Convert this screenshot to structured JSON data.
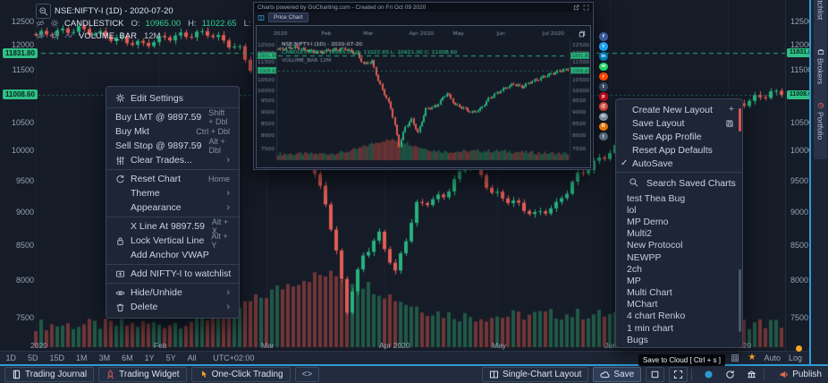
{
  "chart": {
    "legend": {
      "symbol": "NSE:NIFTY-I (1D) - 2020-07-20",
      "study": "CANDLESTICK",
      "ohlc": [
        {
          "k": "O:",
          "v": "10965.00"
        },
        {
          "k": "H:",
          "v": "11022.65"
        },
        {
          "k": "L:",
          "v": "10921.00"
        },
        {
          "k": "C:",
          "v": "11008.60"
        }
      ],
      "volume_study": "VOLUME_BAR",
      "volume_value": "12M"
    },
    "badges": {
      "upper": "11831.80",
      "lower": "11008.60"
    },
    "timezone": "UTC+02:00",
    "scale_labels": {
      "auto": "Auto",
      "log": "Log"
    }
  },
  "chart_data": {
    "type": "candlestick",
    "symbol": "NSE:NIFTY-I",
    "interval": "1D",
    "title": "NSE:NIFTY-I (1D) - 2020-07-20",
    "last": {
      "open": 10965.0,
      "high": 11022.65,
      "low": 10921.0,
      "close": 11008.6
    },
    "levels": {
      "prev_close_dashed": 11831.8,
      "last_price": 11008.6
    },
    "y_axis": {
      "scale": "log",
      "range": [
        7400,
        12600
      ],
      "ticks": [
        12500,
        12000,
        11500,
        10500,
        10000,
        9500,
        9000,
        8500,
        8000,
        7500
      ]
    },
    "x_axis": {
      "months": [
        {
          "label": "2020",
          "i": 0
        },
        {
          "label": "Feb",
          "i": 23
        },
        {
          "label": "Mar",
          "i": 43
        },
        {
          "label": "Apr 2020",
          "i": 65
        },
        {
          "label": "May",
          "i": 86
        },
        {
          "label": "Jun",
          "i": 107
        },
        {
          "label": "Jul 2020",
          "i": 129
        }
      ]
    },
    "n_candles": 140,
    "close_anchors": [
      [
        0,
        12200
      ],
      [
        8,
        12330
      ],
      [
        14,
        12150
      ],
      [
        20,
        12000
      ],
      [
        24,
        12150
      ],
      [
        32,
        12250
      ],
      [
        38,
        11900
      ],
      [
        41,
        11350
      ],
      [
        45,
        11500
      ],
      [
        48,
        10450
      ],
      [
        54,
        9150
      ],
      [
        58,
        7610
      ],
      [
        61,
        8350
      ],
      [
        64,
        8650
      ],
      [
        67,
        8100
      ],
      [
        71,
        9100
      ],
      [
        76,
        9250
      ],
      [
        81,
        9850
      ],
      [
        85,
        9300
      ],
      [
        89,
        9150
      ],
      [
        93,
        8950
      ],
      [
        97,
        9100
      ],
      [
        101,
        9580
      ],
      [
        105,
        9850
      ],
      [
        109,
        10100
      ],
      [
        113,
        10300
      ],
      [
        117,
        10150
      ],
      [
        121,
        10400
      ],
      [
        125,
        10550
      ],
      [
        129,
        10750
      ],
      [
        133,
        10900
      ],
      [
        137,
        11050
      ],
      [
        139,
        11008.6
      ]
    ]
  },
  "context_menu": {
    "items": [
      {
        "icon": "gear",
        "label": "Edit Settings",
        "shortcut": ""
      },
      {
        "icon": null,
        "label": "Buy LMT @ 9897.59",
        "shortcut": "Shift + Dbl"
      },
      {
        "icon": null,
        "label": "Buy Mkt",
        "shortcut": "Ctrl + Dbl"
      },
      {
        "icon": null,
        "label": "Sell Stop @ 9897.59",
        "shortcut": "Alt + Dbl"
      },
      {
        "icon": "sliders",
        "label": "Clear Trades...",
        "submenu": true
      },
      {
        "icon": "reset",
        "label": "Reset Chart",
        "shortcut": "Home"
      },
      {
        "icon": null,
        "label": "Theme",
        "submenu": true
      },
      {
        "icon": null,
        "label": "Appearance",
        "submenu": true
      },
      {
        "icon": null,
        "label": "X Line At 9897.59",
        "shortcut": "Alt + X"
      },
      {
        "icon": "lock",
        "label": "Lock Vertical Line",
        "shortcut": "Alt + Y"
      },
      {
        "icon": null,
        "label": "Add Anchor VWAP",
        "shortcut": ""
      },
      {
        "icon": "watchlist",
        "label": "Add NIFTY-I to watchlist",
        "shortcut": ""
      },
      {
        "icon": "eye",
        "label": "Hide/Unhide",
        "submenu": true
      },
      {
        "icon": "trash",
        "label": "Delete",
        "submenu": true
      }
    ]
  },
  "layout_menu": {
    "items": [
      {
        "label": "Create New Layout",
        "end_icon": "plus"
      },
      {
        "label": "Save Layout",
        "end_icon": "floppy"
      },
      {
        "label": "Save App Profile"
      },
      {
        "label": "Reset App Defaults"
      },
      {
        "label": "AutoSave",
        "checked": true
      }
    ],
    "search_placeholder": "Search Saved Charts.",
    "saved_charts": [
      "test Thea Bug",
      "lol",
      "MP Demo",
      "Multi2",
      "New Protocol",
      "NEWPP",
      "2ch",
      "MP",
      "Multi Chart",
      "MChart",
      "4 chart Renko",
      "1 min chart",
      "Bugs"
    ]
  },
  "popup": {
    "title": "Charts powered by GoCharting.com - Created on Fri Oct 09 2020",
    "tab": "Price Chart",
    "legend_symbol": "NSE:NIFTY-I (1D) - 2020-07-20",
    "legend_ohlc": "CANDLESTICK O: 10965.00 H: 11022.65 L: 10921.00 C: 11008.60",
    "legend_volume": "VOLUME_BAR 12M"
  },
  "social": [
    {
      "name": "facebook",
      "color": "#3b5998",
      "glyph": "f"
    },
    {
      "name": "twitter",
      "color": "#1da1f2",
      "glyph": "t"
    },
    {
      "name": "linkedin",
      "color": "#0077b5",
      "glyph": "in"
    },
    {
      "name": "whatsapp",
      "color": "#25d366",
      "glyph": "w"
    },
    {
      "name": "reddit",
      "color": "#ff4500",
      "glyph": "r"
    },
    {
      "name": "tumblr",
      "color": "#35465c",
      "glyph": "t"
    },
    {
      "name": "pinterest",
      "color": "#bd081c",
      "glyph": "p"
    },
    {
      "name": "email",
      "color": "#d44638",
      "glyph": "@"
    },
    {
      "name": "messenger",
      "color": "#8195a9",
      "glyph": "m"
    },
    {
      "name": "blogger",
      "color": "#f57d00",
      "glyph": "B"
    },
    {
      "name": "telegram",
      "color": "#5b7083",
      "glyph": "t"
    }
  ],
  "side_tabs": [
    {
      "label": "Watchlist"
    },
    {
      "label": "Brokers"
    },
    {
      "label": "Portfolio"
    }
  ],
  "timeframes": [
    "1D",
    "5D",
    "15D",
    "1M",
    "3M",
    "6M",
    "1Y",
    "5Y",
    "All"
  ],
  "bottom_bar": {
    "left": [
      {
        "label": "Trading Journal"
      },
      {
        "label": "Trading Widget"
      },
      {
        "label": "One-Click Trading"
      },
      {
        "label": "<>"
      }
    ],
    "right": {
      "layout": "Single-Chart Layout",
      "save": "Save",
      "publish": "Publish"
    }
  },
  "tooltip": "Save to Cloud [ Ctrl + s ]",
  "colors": {
    "up": "#26b27e",
    "down": "#e25d54",
    "volume_up": "rgba(42,132,94,0.6)",
    "volume_down": "rgba(176,74,66,0.6)",
    "badge": "#2fbf86",
    "accent": "#2e9bd6",
    "dashed_line": "#2fbf86",
    "star": "#f5a623"
  }
}
